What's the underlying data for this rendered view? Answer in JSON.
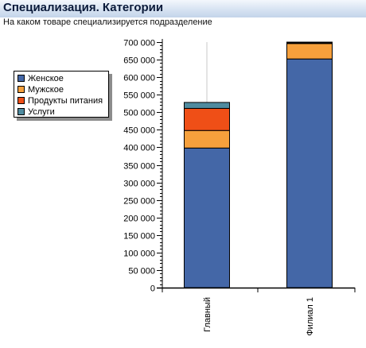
{
  "header": {
    "title": "Специализация. Категории",
    "subtitle": "На каком товаре специализируется подразделение"
  },
  "colors": {
    "Женское": "#4467a7",
    "Мужское": "#f6a03c",
    "Продукты питания": "#ef4f17",
    "Услуги": "#4f8b9f"
  },
  "chart_data": {
    "type": "bar",
    "stacked": true,
    "categories": [
      "Главный",
      "Филиал 1"
    ],
    "series": [
      {
        "name": "Женское",
        "values": [
          398000,
          652000
        ]
      },
      {
        "name": "Мужское",
        "values": [
          50000,
          44000
        ]
      },
      {
        "name": "Продукты питания",
        "values": [
          63000,
          2000
        ]
      },
      {
        "name": "Услуги",
        "values": [
          17000,
          2000
        ]
      }
    ],
    "ylim": [
      0,
      700000
    ],
    "yticks": [
      0,
      50000,
      100000,
      150000,
      200000,
      250000,
      300000,
      350000,
      400000,
      450000,
      500000,
      550000,
      600000,
      650000,
      700000
    ],
    "ytick_labels": [
      "0",
      "50 000",
      "100 000",
      "150 000",
      "200 000",
      "250 000",
      "300 000",
      "350 000",
      "400 000",
      "450 000",
      "500 000",
      "550 000",
      "600 000",
      "650 000",
      "700 000"
    ],
    "legend_position": "left",
    "grid": "vertical"
  }
}
